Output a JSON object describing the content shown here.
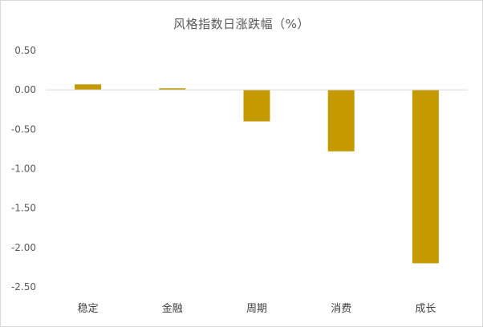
{
  "chart_data": {
    "type": "bar",
    "title": "风格指数日涨跌幅（%）",
    "categories": [
      "稳定",
      "金融",
      "周期",
      "消费",
      "成长"
    ],
    "values": [
      0.07,
      0.02,
      -0.4,
      -0.78,
      -2.2
    ],
    "ylim": [
      -2.5,
      0.5
    ],
    "yticks": [
      "0.50",
      "0.00",
      "-0.50",
      "-1.00",
      "-1.50",
      "-2.00",
      "-2.50"
    ],
    "ytick_values": [
      0.5,
      0.0,
      -0.5,
      -1.0,
      -1.5,
      -2.0,
      -2.5
    ],
    "xlabel": "",
    "ylabel": "",
    "grid": false,
    "legend": "none",
    "bar_color": "#C49A00",
    "zero_line_color": "#D9D9D9"
  }
}
